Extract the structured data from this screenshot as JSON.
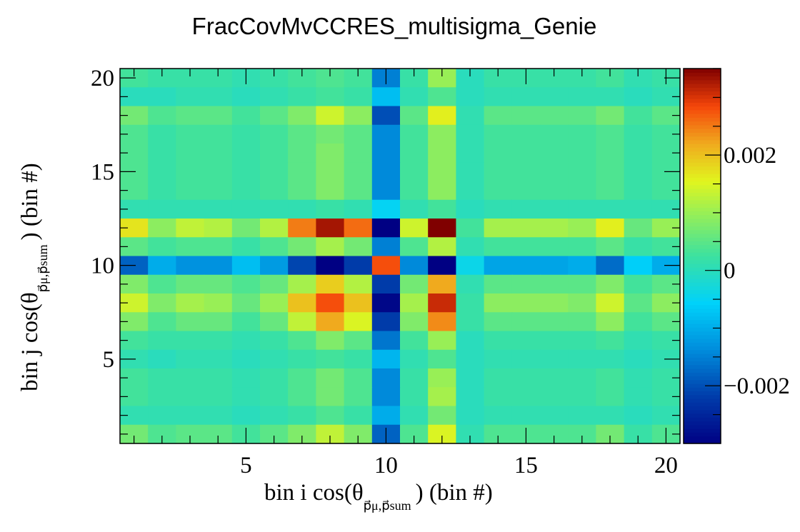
{
  "chart_data": {
    "type": "heatmap",
    "title": "FracCovMvCCRES_multisigma_Genie",
    "xlabel": "bin i cos(θ",
    "xlabel_sub": "p⃗μ,p⃗sum",
    "xlabel_tail": ") (bin #)",
    "ylabel": "bin j cos(θ",
    "ylabel_sub": "p⃗μ,p⃗sum",
    "ylabel_tail": ") (bin #)",
    "xlim": [
      0.5,
      20.5
    ],
    "ylim": [
      0.5,
      20.5
    ],
    "x_ticks": [
      "5",
      "10",
      "15",
      "20"
    ],
    "y_ticks": [
      "5",
      "10",
      "15",
      "20"
    ],
    "zlim": [
      -0.003,
      0.0035
    ],
    "z_ticks": [
      "−0.002",
      "0",
      "0.002"
    ],
    "colormap": "jet",
    "matrix_rows_top_to_bottom": [
      [
        0.0003,
        0.0002,
        0.0002,
        0.0002,
        0.0001,
        0.0002,
        0.0003,
        0.0004,
        0.0003,
        -0.0015,
        0.0002,
        0.001,
        0.0,
        0.0002,
        0.0002,
        0.0002,
        0.0002,
        0.0003,
        0.0001,
        0.0002
      ],
      [
        0.0,
        0.0,
        0.0001,
        0.0001,
        0.0,
        0.0001,
        0.0002,
        0.0003,
        0.0002,
        -0.0008,
        0.0001,
        0.0004,
        0.0,
        0.0001,
        0.0001,
        0.0001,
        0.0001,
        0.0001,
        0.0,
        0.0001
      ],
      [
        0.0007,
        0.0004,
        0.0005,
        0.0005,
        0.0003,
        0.0005,
        0.0008,
        0.0014,
        0.0009,
        -0.002,
        0.0005,
        0.0016,
        0.0001,
        0.0005,
        0.0005,
        0.0005,
        0.0005,
        0.0007,
        0.0003,
        0.0005
      ],
      [
        0.0004,
        0.0002,
        0.0003,
        0.0003,
        0.0002,
        0.0003,
        0.0005,
        0.0007,
        0.0005,
        -0.0014,
        0.0003,
        0.0009,
        0.0001,
        0.0003,
        0.0003,
        0.0003,
        0.0003,
        0.0004,
        0.0002,
        0.0003
      ],
      [
        0.0004,
        0.0002,
        0.0003,
        0.0003,
        0.0002,
        0.0003,
        0.0005,
        0.0008,
        0.0005,
        -0.0014,
        0.0003,
        0.0009,
        0.0001,
        0.0003,
        0.0003,
        0.0003,
        0.0003,
        0.0004,
        0.0002,
        0.0003
      ],
      [
        0.0004,
        0.0002,
        0.0003,
        0.0003,
        0.0002,
        0.0003,
        0.0005,
        0.0008,
        0.0005,
        -0.0014,
        0.0003,
        0.0009,
        0.0001,
        0.0003,
        0.0003,
        0.0003,
        0.0003,
        0.0004,
        0.0002,
        0.0003
      ],
      [
        0.0004,
        0.0002,
        0.0003,
        0.0003,
        0.0002,
        0.0003,
        0.0005,
        0.0008,
        0.0005,
        -0.0014,
        0.0003,
        0.0009,
        0.0001,
        0.0003,
        0.0003,
        0.0003,
        0.0003,
        0.0004,
        0.0002,
        0.0003
      ],
      [
        0.0001,
        0.0001,
        0.0001,
        0.0001,
        0.0001,
        0.0001,
        0.0001,
        0.0002,
        0.0001,
        -0.0005,
        0.0001,
        0.0003,
        0.0,
        0.0001,
        0.0001,
        0.0001,
        0.0001,
        0.0001,
        0.0001,
        0.0001
      ],
      [
        0.0017,
        0.0009,
        0.0013,
        0.0012,
        0.0007,
        0.0012,
        0.0025,
        0.0033,
        0.0026,
        -0.003,
        0.0014,
        0.0035,
        0.0003,
        0.0011,
        0.0011,
        0.0011,
        0.001,
        0.0016,
        0.0006,
        0.001
      ],
      [
        0.0005,
        0.0003,
        0.0004,
        0.0004,
        0.0002,
        0.0004,
        0.0007,
        0.0011,
        0.0007,
        -0.0015,
        0.0004,
        0.0012,
        0.0001,
        0.0003,
        0.0003,
        0.0003,
        0.0003,
        0.0005,
        0.0002,
        0.0003
      ],
      [
        -0.0018,
        -0.001,
        -0.0013,
        -0.0013,
        -0.0008,
        -0.0012,
        -0.0021,
        -0.003,
        -0.0022,
        0.0028,
        -0.0014,
        -0.003,
        -0.0004,
        -0.0011,
        -0.0011,
        -0.0011,
        -0.001,
        -0.0017,
        -0.0006,
        -0.001
      ],
      [
        0.0008,
        0.0004,
        0.0006,
        0.0006,
        0.0004,
        0.0006,
        0.0011,
        0.0019,
        0.0012,
        -0.0022,
        0.0007,
        0.0022,
        0.0001,
        0.0005,
        0.0005,
        0.0005,
        0.0005,
        0.0008,
        0.0003,
        0.0005
      ],
      [
        0.0014,
        0.0008,
        0.0011,
        0.001,
        0.0006,
        0.001,
        0.002,
        0.0028,
        0.002,
        -0.0029,
        0.0011,
        0.0031,
        0.0002,
        0.0009,
        0.0009,
        0.0009,
        0.0008,
        0.0014,
        0.0005,
        0.0009
      ],
      [
        0.0008,
        0.0004,
        0.0006,
        0.0006,
        0.0003,
        0.0006,
        0.0013,
        0.0022,
        0.0015,
        -0.0022,
        0.0008,
        0.0024,
        0.0002,
        0.0005,
        0.0005,
        0.0005,
        0.0005,
        0.0009,
        0.0003,
        0.0005
      ],
      [
        0.0003,
        0.0002,
        0.0002,
        0.0002,
        0.0001,
        0.0002,
        0.0004,
        0.0008,
        0.0005,
        -0.0016,
        0.0003,
        0.001,
        0.0,
        0.0002,
        0.0002,
        0.0002,
        0.0002,
        0.0003,
        0.0001,
        0.0002
      ],
      [
        0.0001,
        0.0,
        0.0001,
        0.0001,
        0.0,
        0.0001,
        0.0002,
        0.0003,
        0.0002,
        -0.0009,
        0.0001,
        0.0004,
        0.0,
        0.0001,
        0.0001,
        0.0001,
        0.0001,
        0.0001,
        0.0,
        0.0001
      ],
      [
        0.0003,
        0.0002,
        0.0002,
        0.0002,
        0.0001,
        0.0002,
        0.0004,
        0.0007,
        0.0004,
        -0.0014,
        0.0002,
        0.001,
        0.0,
        0.0002,
        0.0002,
        0.0002,
        0.0002,
        0.0003,
        0.0001,
        0.0002
      ],
      [
        0.0003,
        0.0002,
        0.0002,
        0.0002,
        0.0001,
        0.0002,
        0.0004,
        0.0007,
        0.0004,
        -0.0014,
        0.0002,
        0.0011,
        0.0,
        0.0002,
        0.0002,
        0.0002,
        0.0002,
        0.0003,
        0.0001,
        0.0002
      ],
      [
        0.0001,
        0.0001,
        0.0001,
        0.0001,
        0.0,
        0.0001,
        0.0002,
        0.0004,
        0.0002,
        -0.001,
        0.0001,
        0.0007,
        0.0,
        0.0001,
        0.0001,
        0.0001,
        0.0001,
        0.0001,
        0.0,
        0.0001
      ],
      [
        0.0007,
        0.0004,
        0.0005,
        0.0005,
        0.0003,
        0.0005,
        0.0008,
        0.0013,
        0.0008,
        -0.0018,
        0.0004,
        0.0015,
        0.0001,
        0.0004,
        0.0004,
        0.0004,
        0.0004,
        0.0007,
        0.0002,
        0.0004
      ]
    ]
  }
}
